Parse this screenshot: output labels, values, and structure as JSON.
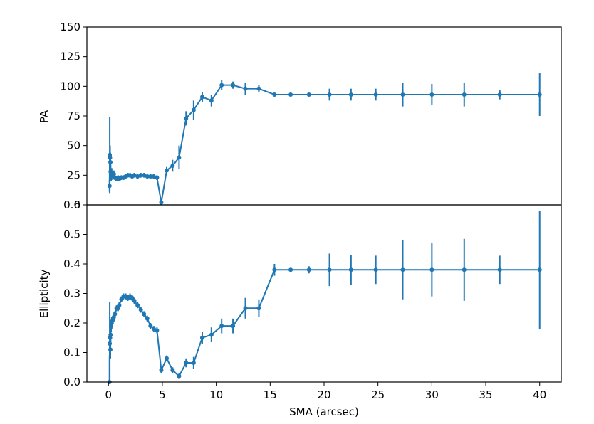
{
  "chart_data": {
    "type": "line",
    "color": "#1f77b4",
    "shared_x": {
      "label": "SMA (arcsec)",
      "lim": [
        -2,
        42
      ],
      "ticks": [
        0,
        5,
        10,
        15,
        20,
        25,
        30,
        35,
        40
      ],
      "tick_labels": [
        "0",
        "5",
        "10",
        "15",
        "20",
        "25",
        "30",
        "35",
        "40"
      ]
    },
    "panels": [
      {
        "ylabel": "PA",
        "ylim": [
          0,
          150
        ],
        "yticks": [
          0,
          25,
          50,
          75,
          100,
          125,
          150
        ],
        "ytick_labels": [
          "0",
          "25",
          "50",
          "75",
          "100",
          "125",
          "150"
        ],
        "series": [
          {
            "x": [
              0.1,
              0.12,
              0.15,
              0.18,
              0.2,
              0.25,
              0.3,
              0.4,
              0.5,
              0.6,
              0.75,
              0.9,
              1.0,
              1.2,
              1.4,
              1.6,
              1.8,
              2.0,
              2.2,
              2.4,
              2.7,
              3.0,
              3.3,
              3.6,
              3.9,
              4.2,
              4.5,
              4.9,
              5.4,
              5.95,
              6.55,
              7.2,
              7.9,
              8.7,
              9.55,
              10.5,
              11.55,
              12.7,
              13.95,
              15.4,
              16.9,
              18.6,
              20.5,
              22.5,
              24.8,
              27.3,
              30.0,
              33.0,
              36.3,
              40.0
            ],
            "y": [
              16,
              42,
              40,
              36,
              28,
              25,
              27,
              24,
              26,
              23,
              22,
              23,
              22,
              23,
              23,
              24,
              25,
              25,
              24,
              25,
              24,
              25,
              25,
              24,
              24,
              24,
              23,
              2,
              29,
              33,
              40,
              73,
              80,
              91,
              88,
              101,
              101,
              98,
              98,
              93,
              93,
              93,
              93,
              93,
              93,
              93,
              93,
              93,
              93,
              93
            ],
            "yerr": [
              5,
              32,
              10,
              8,
              6,
              5,
              4,
              3,
              3,
              2,
              2,
              2,
              2,
              2,
              2,
              2,
              2,
              2,
              2,
              2,
              2,
              2,
              2,
              2,
              2,
              2,
              2,
              2,
              3,
              5,
              10,
              6,
              8,
              4,
              5,
              4,
              3,
              5,
              3,
              1,
              1,
              1,
              5,
              5,
              5,
              10,
              9,
              10,
              4,
              18
            ]
          }
        ]
      },
      {
        "ylabel": "Ellipticity",
        "ylim": [
          0,
          0.6
        ],
        "yticks": [
          0.0,
          0.1,
          0.2,
          0.3,
          0.4,
          0.5,
          0.6
        ],
        "ytick_labels": [
          "0.0",
          "0.1",
          "0.2",
          "0.3",
          "0.4",
          "0.5",
          "0.6"
        ],
        "series": [
          {
            "x": [
              0.1,
              0.12,
              0.15,
              0.18,
              0.2,
              0.25,
              0.3,
              0.4,
              0.5,
              0.6,
              0.75,
              0.9,
              1.0,
              1.2,
              1.4,
              1.6,
              1.8,
              2.0,
              2.2,
              2.4,
              2.7,
              3.0,
              3.3,
              3.6,
              3.9,
              4.2,
              4.5,
              4.9,
              5.4,
              5.95,
              6.55,
              7.2,
              7.9,
              8.7,
              9.55,
              10.5,
              11.55,
              12.7,
              13.95,
              15.4,
              16.9,
              18.6,
              20.5,
              22.5,
              24.8,
              27.3,
              30.0,
              33.0,
              36.3,
              40.0
            ],
            "y": [
              0.0,
              0.13,
              0.15,
              0.11,
              0.16,
              0.19,
              0.2,
              0.21,
              0.22,
              0.23,
              0.25,
              0.25,
              0.26,
              0.28,
              0.29,
              0.29,
              0.285,
              0.29,
              0.285,
              0.275,
              0.26,
              0.245,
              0.23,
              0.215,
              0.19,
              0.18,
              0.175,
              0.04,
              0.08,
              0.04,
              0.02,
              0.065,
              0.065,
              0.15,
              0.16,
              0.19,
              0.19,
              0.25,
              0.25,
              0.38,
              0.38,
              0.38,
              0.38,
              0.38,
              0.38,
              0.38,
              0.38,
              0.38,
              0.38,
              0.38
            ],
            "yerr": [
              0.09,
              0.14,
              0.06,
              0.03,
              0.03,
              0.02,
              0.02,
              0.01,
              0.01,
              0.01,
              0.01,
              0.01,
              0.01,
              0.01,
              0.01,
              0.01,
              0.01,
              0.01,
              0.01,
              0.01,
              0.01,
              0.01,
              0.01,
              0.01,
              0.01,
              0.01,
              0.01,
              0.01,
              0.01,
              0.01,
              0.01,
              0.015,
              0.02,
              0.02,
              0.025,
              0.025,
              0.025,
              0.035,
              0.03,
              0.02,
              0.005,
              0.012,
              0.055,
              0.05,
              0.048,
              0.1,
              0.09,
              0.105,
              0.048,
              0.2
            ]
          }
        ]
      }
    ]
  }
}
